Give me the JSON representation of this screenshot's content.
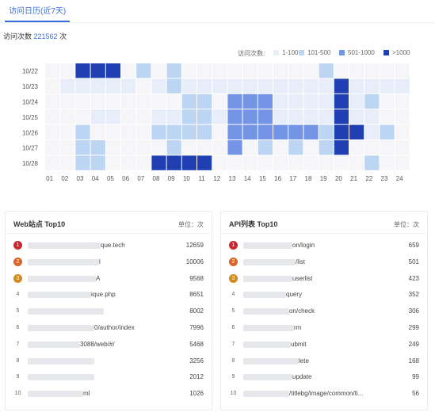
{
  "tab": {
    "label": "访问日历(近7天)"
  },
  "visits": {
    "label": "访问次数",
    "count": "221562",
    "unit": "次"
  },
  "legend": {
    "title": "访问次数:",
    "items": [
      {
        "label": "1-100",
        "color": "#e8eef9"
      },
      {
        "label": "101-500",
        "color": "#bcd5f2"
      },
      {
        "label": "501-1000",
        "color": "#7494e6"
      },
      {
        "label": ">1000",
        "color": "#1f3fb2"
      }
    ]
  },
  "chart_data": {
    "type": "heatmap",
    "x": [
      "01",
      "02",
      "03",
      "04",
      "05",
      "06",
      "07",
      "08",
      "09",
      "10",
      "11",
      "12",
      "13",
      "14",
      "15",
      "16",
      "17",
      "18",
      "19",
      "20",
      "21",
      "22",
      "23",
      "24"
    ],
    "y": [
      "10/22",
      "10/23",
      "10/24",
      "10/25",
      "10/26",
      "10/27",
      "10/28"
    ],
    "levels": [
      "0",
      "1-100",
      "101-500",
      "501-1000",
      ">1000"
    ],
    "empty_color": "#f6f6f9",
    "values": [
      [
        0,
        0,
        4,
        4,
        4,
        0,
        2,
        0,
        2,
        0,
        0,
        0,
        0,
        0,
        0,
        0,
        0,
        0,
        2,
        0,
        0,
        0,
        0,
        0
      ],
      [
        0,
        1,
        1,
        1,
        1,
        1,
        0,
        1,
        2,
        1,
        1,
        1,
        1,
        1,
        1,
        1,
        1,
        1,
        1,
        4,
        1,
        1,
        1,
        1
      ],
      [
        0,
        0,
        0,
        0,
        0,
        0,
        0,
        0,
        0,
        2,
        2,
        0,
        3,
        3,
        3,
        1,
        1,
        1,
        1,
        4,
        1,
        2,
        0,
        0
      ],
      [
        0,
        0,
        0,
        1,
        1,
        0,
        0,
        1,
        1,
        2,
        2,
        1,
        3,
        3,
        3,
        1,
        1,
        1,
        1,
        4,
        1,
        1,
        0,
        0
      ],
      [
        0,
        0,
        2,
        0,
        0,
        0,
        0,
        2,
        2,
        2,
        2,
        0,
        3,
        3,
        3,
        3,
        3,
        3,
        2,
        4,
        4,
        1,
        2,
        0
      ],
      [
        0,
        0,
        2,
        2,
        0,
        0,
        0,
        0,
        2,
        0,
        0,
        0,
        3,
        0,
        2,
        0,
        2,
        0,
        2,
        4,
        0,
        0,
        0,
        0
      ],
      [
        0,
        0,
        2,
        2,
        0,
        0,
        0,
        4,
        4,
        4,
        4,
        0,
        0,
        0,
        0,
        0,
        0,
        0,
        0,
        0,
        0,
        2,
        0,
        0
      ]
    ]
  },
  "web_panel": {
    "title": "Web站点 Top10",
    "unit": "单位：次",
    "rows": [
      {
        "rank": "1",
        "text": "que.tech",
        "value": "12659"
      },
      {
        "rank": "2",
        "text": "l",
        "value": "10006"
      },
      {
        "rank": "3",
        "text": "A",
        "value": "9568"
      },
      {
        "rank": "4",
        "text": "ique.php",
        "value": "8651"
      },
      {
        "rank": "5",
        "text": "",
        "value": "8002"
      },
      {
        "rank": "6",
        "text": "0/author/index",
        "value": "7996"
      },
      {
        "rank": "7",
        "text": "3088/web/#/",
        "value": "5468"
      },
      {
        "rank": "8",
        "text": "",
        "value": "3256"
      },
      {
        "rank": "9",
        "text": "",
        "value": "2012"
      },
      {
        "rank": "10",
        "text": "ml",
        "value": "1026"
      }
    ]
  },
  "api_panel": {
    "title": "API列表 Top10",
    "unit": "单位：次",
    "rows": [
      {
        "rank": "1",
        "text": "on/login",
        "value": "659"
      },
      {
        "rank": "2",
        "text": "/list",
        "value": "501"
      },
      {
        "rank": "3",
        "text": "userlist",
        "value": "423"
      },
      {
        "rank": "4",
        "text": "query",
        "value": "352"
      },
      {
        "rank": "5",
        "text": "on/check",
        "value": "306"
      },
      {
        "rank": "6",
        "text": "rm",
        "value": "299"
      },
      {
        "rank": "7",
        "text": "ubmit",
        "value": "249"
      },
      {
        "rank": "8",
        "text": "lete",
        "value": "168"
      },
      {
        "rank": "9",
        "text": "update",
        "value": "99"
      },
      {
        "rank": "10",
        "text": "/titlebg/image/common/ti...",
        "value": "56"
      }
    ]
  }
}
